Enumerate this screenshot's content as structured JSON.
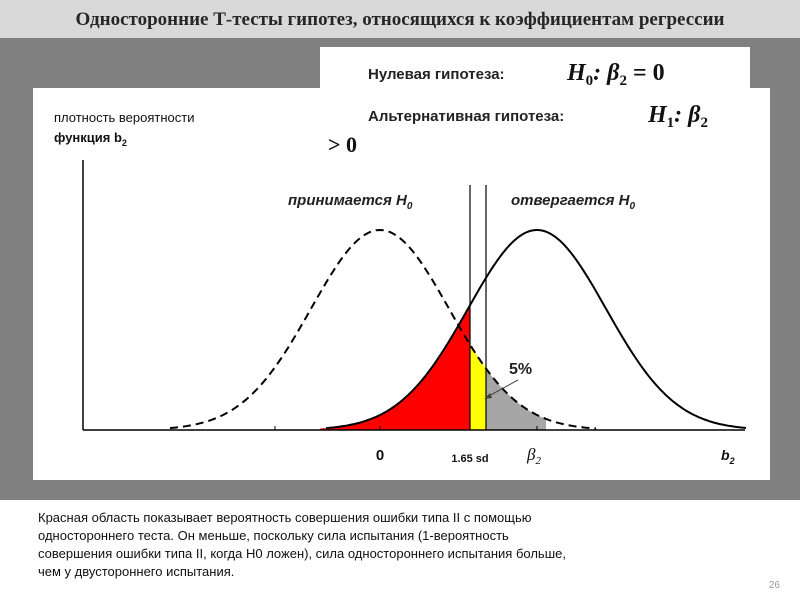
{
  "title": "Односторонние Т-тесты гипотез, относящихся к коэффициентам регрессии",
  "hypotheses": {
    "null_label": "Нулевая гипотеза:",
    "null_formula": [
      "H",
      "0",
      ": β",
      "2",
      " = 0"
    ],
    "alt_label": "Альтернативная гипотеза:",
    "alt_formula": [
      "H",
      "1",
      ": β",
      "2"
    ],
    "alt_continuation": "> 0"
  },
  "y_axis_label": {
    "line1": "плотность вероятности",
    "line2": [
      "функция b",
      "2"
    ]
  },
  "labels": {
    "accept": [
      "принимается H",
      "0"
    ],
    "reject": [
      "отвергается H",
      "0"
    ],
    "percent": "5%",
    "zero": "0",
    "critical": "1.65 sd",
    "beta": [
      "β",
      "2"
    ],
    "b": [
      "b",
      "2"
    ]
  },
  "caption": [
    "Красная область показывает вероятность совершения ошибки типа II с помощью",
    "одностороннего теста. Он меньше, поскольку сила испытания (1-вероятность",
    "совершения ошибки типа II, когда H0 ложен), сила одностороннего испытания больше,",
    "чем у двустороннего испытания."
  ],
  "page_number": "26"
}
